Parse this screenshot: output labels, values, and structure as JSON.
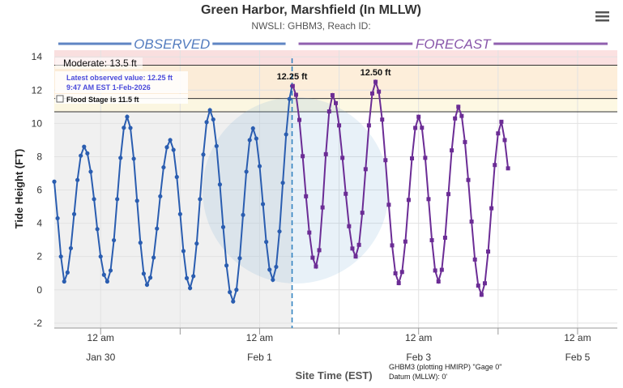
{
  "chart_data": {
    "type": "line",
    "title": "Green Harbor, Marshfield (In MLLW)",
    "subtitle": "NWSLI: GHBM3, Reach ID:",
    "ylabel": "Tide Height (FT)",
    "xlabel": "Site Time (EST)",
    "xlim": [
      -14,
      156
    ],
    "ylim": [
      -2.3,
      14.4
    ],
    "yticks": [
      14,
      12,
      10,
      8,
      6,
      4,
      2,
      0,
      -2
    ],
    "xticks": [
      {
        "value": 0,
        "label": "12 am"
      },
      {
        "value": 48,
        "label": "12 am"
      },
      {
        "value": 96,
        "label": "12 am"
      },
      {
        "value": 144,
        "label": "12 am"
      }
    ],
    "xtick_dates": [
      "Jan 30",
      "Feb 1",
      "Feb 3",
      "Feb 5"
    ],
    "xgrid_minor": [
      24,
      72,
      120
    ],
    "grid": true,
    "thresholds": [
      {
        "label": "Moderate: 13.5 ft",
        "value": 13.5,
        "color": "#fadcdc"
      },
      {
        "label": "Flood Stage is 11.5 ft",
        "value": 11.5,
        "color": "#fdebd3"
      },
      {
        "value": 10.7,
        "color": "#fdf7de"
      }
    ],
    "latest": {
      "text": "Latest observed value: 12.25 ft",
      "time": "9:47 AM EST 1-Feb-2026",
      "x": 57.8
    },
    "peak_labels": [
      {
        "label": "12.25 ft",
        "x": 57.8,
        "value": 12.25
      },
      {
        "label": "12.50 ft",
        "x": 83,
        "value": 12.5
      }
    ],
    "footer": [
      "GHBM3 (plotting HMIRP) \"Gage 0\"",
      "Datum (MLLW): 0'"
    ],
    "series": [
      {
        "name": "OBSERVED",
        "color": "#2a5db0",
        "marker": "circle",
        "x": [
          -14,
          -13,
          -12,
          -11,
          -10,
          -9,
          -8,
          -7,
          -6,
          -5,
          -4,
          -3,
          -2,
          -1,
          0,
          1,
          2,
          3,
          4,
          5,
          6,
          7,
          8,
          9,
          10,
          11,
          12,
          13,
          14,
          15,
          16,
          17,
          18,
          19,
          20,
          21,
          22,
          23,
          24,
          25,
          26,
          27,
          28,
          29,
          30,
          31,
          32,
          33,
          34,
          35,
          36,
          37,
          38,
          39,
          40,
          41,
          42,
          43,
          44,
          45,
          46,
          47,
          48,
          49,
          50,
          51,
          52,
          53,
          54,
          55,
          56,
          57,
          57.8
        ],
        "values": [
          6.5,
          4.3,
          2.0,
          0.5,
          1.04,
          2.5,
          4.55,
          6.6,
          8.06,
          8.6,
          8.2,
          7.1,
          5.45,
          3.65,
          2.0,
          0.9,
          0.5,
          1.16,
          2.98,
          5.45,
          7.93,
          9.74,
          10.4,
          9.73,
          7.88,
          5.35,
          2.83,
          0.97,
          0.3,
          0.73,
          1.94,
          3.68,
          5.62,
          7.36,
          8.57,
          9.0,
          8.41,
          6.78,
          4.55,
          2.33,
          0.7,
          0.1,
          0.82,
          2.78,
          5.45,
          8.13,
          10.08,
          10.8,
          10.24,
          8.64,
          6.33,
          3.77,
          1.46,
          -0.14,
          -0.7,
          0.0,
          1.9,
          4.5,
          7.1,
          9.0,
          9.7,
          9.09,
          7.43,
          5.15,
          2.88,
          1.21,
          0.6,
          1.38,
          3.51,
          6.43,
          9.34,
          11.47,
          12.25
        ]
      },
      {
        "name": "FORECAST",
        "color": "#6b2c95",
        "marker": "square",
        "x": [
          58,
          59,
          60,
          61,
          62,
          63,
          64,
          65,
          66,
          67,
          68,
          69,
          70,
          71,
          72,
          73,
          74,
          75,
          76,
          77,
          78,
          79,
          80,
          81,
          82,
          83,
          84,
          85,
          86,
          87,
          88,
          89,
          90,
          91,
          92,
          93,
          94,
          95,
          96,
          97,
          98,
          99,
          100,
          101,
          102,
          103,
          104,
          105,
          106,
          107,
          108,
          109,
          110,
          111,
          112,
          113,
          114,
          115,
          116,
          117,
          118,
          119,
          120,
          121,
          122,
          123
        ],
        "values": [
          12.25,
          11.72,
          10.21,
          8.03,
          5.62,
          3.44,
          1.93,
          1.4,
          2.38,
          4.95,
          8.15,
          10.72,
          11.7,
          11.22,
          9.88,
          7.93,
          5.77,
          3.82,
          2.48,
          2.0,
          2.7,
          4.63,
          7.25,
          9.88,
          11.8,
          12.5,
          11.91,
          10.23,
          7.79,
          5.11,
          2.67,
          0.99,
          0.4,
          1.07,
          2.9,
          5.4,
          7.9,
          9.73,
          10.4,
          9.74,
          7.93,
          5.45,
          2.98,
          1.16,
          0.5,
          1.2,
          3.13,
          5.75,
          8.38,
          10.3,
          11.0,
          10.45,
          8.88,
          6.6,
          4.1,
          1.82,
          0.25,
          -0.3,
          0.39,
          2.3,
          4.9,
          7.5,
          9.4,
          10.1,
          9.0,
          7.3
        ]
      }
    ]
  }
}
